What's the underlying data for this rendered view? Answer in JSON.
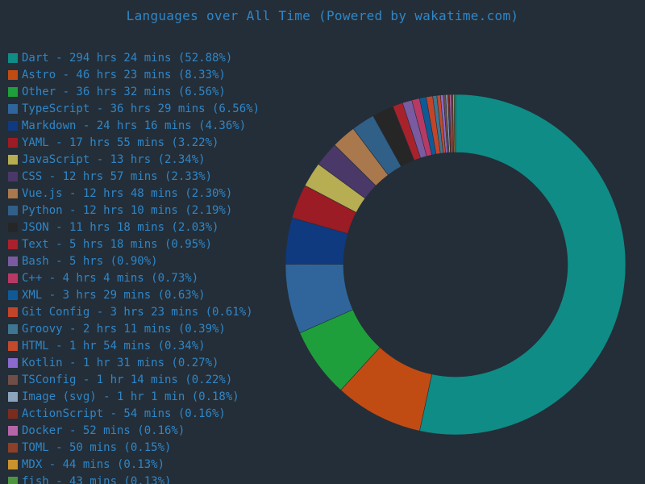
{
  "chart_data": {
    "type": "pie",
    "variant": "donut",
    "title": "Languages over All Time (Powered by wakatime.com)",
    "legend_position": "left",
    "colors": {
      "background": "#242e38",
      "text": "#2f86c7"
    },
    "slices": [
      {
        "label": "Dart - 294 hrs 24 mins (52.88%)",
        "name": "Dart",
        "value": 52.88,
        "color": "#0f8c86"
      },
      {
        "label": "Astro - 46 hrs 23 mins (8.33%)",
        "name": "Astro",
        "value": 8.33,
        "color": "#c04c14"
      },
      {
        "label": "Other - 36 hrs 32 mins (6.56%)",
        "name": "Other",
        "value": 6.56,
        "color": "#1f9f3c"
      },
      {
        "label": "TypeScript - 36 hrs 29 mins (6.56%)",
        "name": "TypeScript",
        "value": 6.56,
        "color": "#2f659a"
      },
      {
        "label": "Markdown - 24 hrs 16 mins (4.36%)",
        "name": "Markdown",
        "value": 4.36,
        "color": "#0f3a80"
      },
      {
        "label": "YAML - 17 hrs 55 mins (3.22%)",
        "name": "YAML",
        "value": 3.22,
        "color": "#9b1c24"
      },
      {
        "label": "JavaScript - 13 hrs (2.34%)",
        "name": "JavaScript",
        "value": 2.34,
        "color": "#b7ad52"
      },
      {
        "label": "CSS - 12 hrs 57 mins (2.33%)",
        "name": "CSS",
        "value": 2.33,
        "color": "#4a3868"
      },
      {
        "label": "Vue.js - 12 hrs 48 mins (2.30%)",
        "name": "Vue.js",
        "value": 2.3,
        "color": "#a9784c"
      },
      {
        "label": "Python - 12 hrs 10 mins (2.19%)",
        "name": "Python",
        "value": 2.19,
        "color": "#305f88"
      },
      {
        "label": "JSON - 11 hrs 18 mins (2.03%)",
        "name": "JSON",
        "value": 2.03,
        "color": "#262626"
      },
      {
        "label": "Text - 5 hrs 18 mins (0.95%)",
        "name": "Text",
        "value": 0.95,
        "color": "#a8222c"
      },
      {
        "label": "Bash - 5 hrs (0.90%)",
        "name": "Bash",
        "value": 0.9,
        "color": "#7a5aa0"
      },
      {
        "label": "C++ - 4 hrs 4 mins (0.73%)",
        "name": "C++",
        "value": 0.73,
        "color": "#b83a64"
      },
      {
        "label": "XML - 3 hrs 29 mins (0.63%)",
        "name": "XML",
        "value": 0.63,
        "color": "#0f5a96"
      },
      {
        "label": "Git Config - 3 hrs 23 mins (0.61%)",
        "name": "Git Config",
        "value": 0.61,
        "color": "#c2452a"
      },
      {
        "label": "Groovy - 2 hrs 11 mins (0.39%)",
        "name": "Groovy",
        "value": 0.39,
        "color": "#3e7591"
      },
      {
        "label": "HTML - 1 hr 54 mins (0.34%)",
        "name": "HTML",
        "value": 0.34,
        "color": "#c2492c"
      },
      {
        "label": "Kotlin - 1 hr 31 mins (0.27%)",
        "name": "Kotlin",
        "value": 0.27,
        "color": "#8a6acc"
      },
      {
        "label": "TSConfig - 1 hr 14 mins (0.22%)",
        "name": "TSConfig",
        "value": 0.22,
        "color": "#6e4e46"
      },
      {
        "label": "Image (svg) - 1 hr 1 min (0.18%)",
        "name": "Image (svg)",
        "value": 0.18,
        "color": "#8ca3bc"
      },
      {
        "label": "ActionScript - 54 mins (0.16%)",
        "name": "ActionScript",
        "value": 0.16,
        "color": "#7a2d1e"
      },
      {
        "label": "Docker - 52 mins (0.16%)",
        "name": "Docker",
        "value": 0.16,
        "color": "#b666a8"
      },
      {
        "label": "TOML - 50 mins (0.15%)",
        "name": "TOML",
        "value": 0.15,
        "color": "#8c4028"
      },
      {
        "label": "MDX - 44 mins (0.13%)",
        "name": "MDX",
        "value": 0.13,
        "color": "#c9922c"
      },
      {
        "label": "fish - 43 mins (0.13%)",
        "name": "fish",
        "value": 0.13,
        "color": "#4e9440"
      }
    ]
  }
}
